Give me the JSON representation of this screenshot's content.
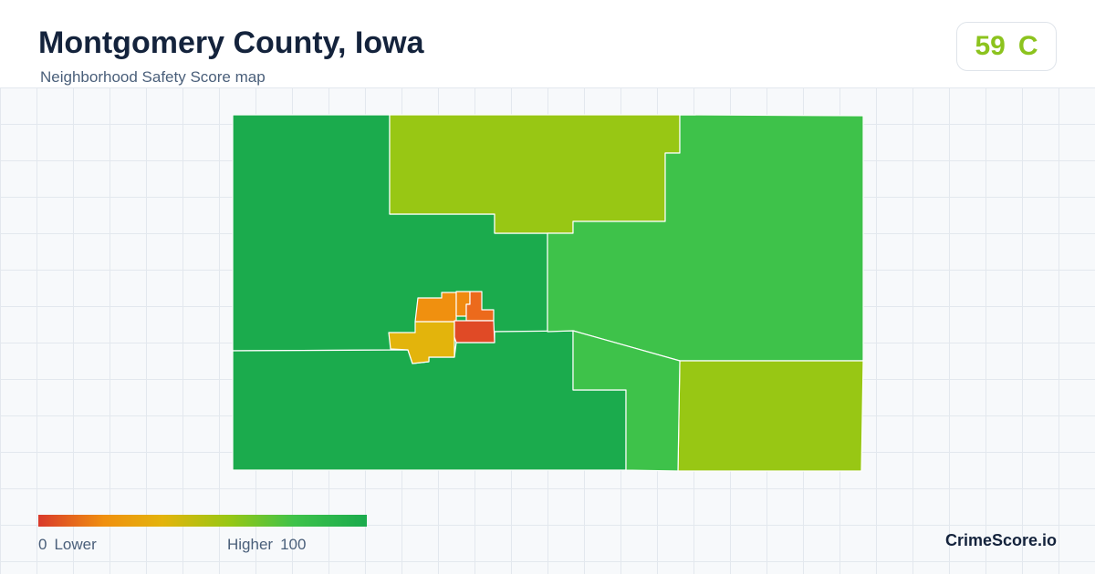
{
  "header": {
    "title": "Montgomery County, Iowa",
    "subtitle": "Neighborhood Safety Score map"
  },
  "score": {
    "value": "59",
    "grade": "C",
    "color": "#8cc31e"
  },
  "map": {
    "scale_colors": {
      "lowest": "#d93a2b",
      "low": "#f0900f",
      "lower_mid": "#e3b40c",
      "mid": "#98c714",
      "high": "#3ec24a",
      "highest": "#1bab4d"
    },
    "regions": [
      {
        "id": "west",
        "color": "#1bab4d"
      },
      {
        "id": "southwest",
        "color": "#1bab4d"
      },
      {
        "id": "north-center",
        "color": "#98c714"
      },
      {
        "id": "east",
        "color": "#3ec24a"
      },
      {
        "id": "southeast",
        "color": "#98c714"
      },
      {
        "id": "south-strip",
        "color": "#3ec24a"
      },
      {
        "id": "city-west",
        "color": "#e3b40c"
      },
      {
        "id": "city-northwest",
        "color": "#f0900f"
      },
      {
        "id": "city-north",
        "color": "#f08a10"
      },
      {
        "id": "city-northeast",
        "color": "#ec6a1c"
      },
      {
        "id": "city-east",
        "color": "#e04a26"
      }
    ]
  },
  "legend": {
    "min_value": "0",
    "min_label": "Lower",
    "max_label": "Higher",
    "max_value": "100"
  },
  "brand": "CrimeScore.io"
}
